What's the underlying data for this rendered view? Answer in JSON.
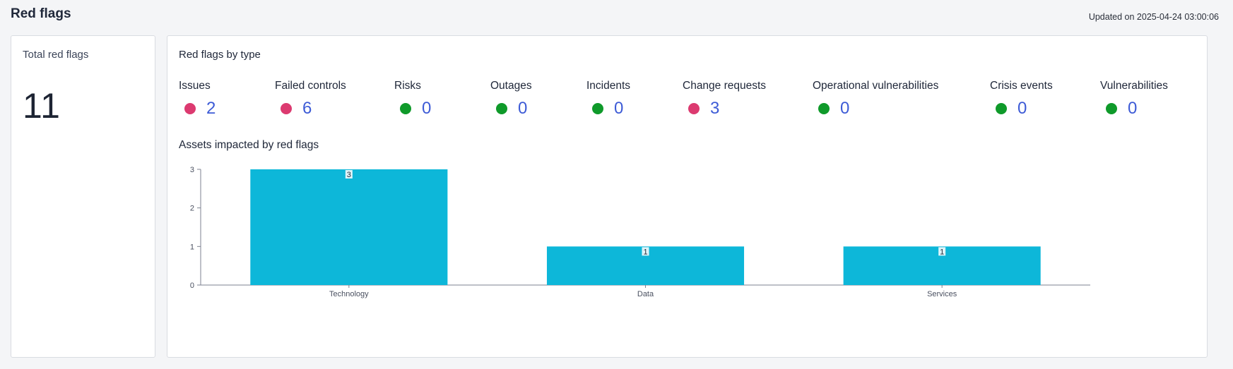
{
  "header": {
    "title": "Red flags",
    "updated": "Updated on 2025-04-24 03:00:06"
  },
  "total_card": {
    "title": "Total red flags",
    "value": "11"
  },
  "types_card": {
    "title": "Red flags by type",
    "items": [
      {
        "label": "Issues",
        "count": "2",
        "status": "red"
      },
      {
        "label": "Failed controls",
        "count": "6",
        "status": "red"
      },
      {
        "label": "Risks",
        "count": "0",
        "status": "green"
      },
      {
        "label": "Outages",
        "count": "0",
        "status": "green"
      },
      {
        "label": "Incidents",
        "count": "0",
        "status": "green"
      },
      {
        "label": "Change requests",
        "count": "3",
        "status": "red"
      },
      {
        "label": "Operational vulnerabilities",
        "count": "0",
        "status": "green"
      },
      {
        "label": "Crisis events",
        "count": "0",
        "status": "green"
      },
      {
        "label": "Vulnerabilities",
        "count": "0",
        "status": "green"
      }
    ],
    "colors": {
      "red": "#dc3a70",
      "green": "#0f9a2a",
      "bar": "#0db7d9"
    }
  },
  "assets_section": {
    "title": "Assets impacted by red flags"
  },
  "chart_data": {
    "type": "bar",
    "categories": [
      "Technology",
      "Data",
      "Services"
    ],
    "values": [
      3,
      1,
      1
    ],
    "data_labels": [
      "3",
      "1",
      "1"
    ],
    "yticks": [
      "0",
      "1",
      "2",
      "3"
    ],
    "ylim": [
      0,
      3
    ],
    "grid": false,
    "legend": "none"
  }
}
